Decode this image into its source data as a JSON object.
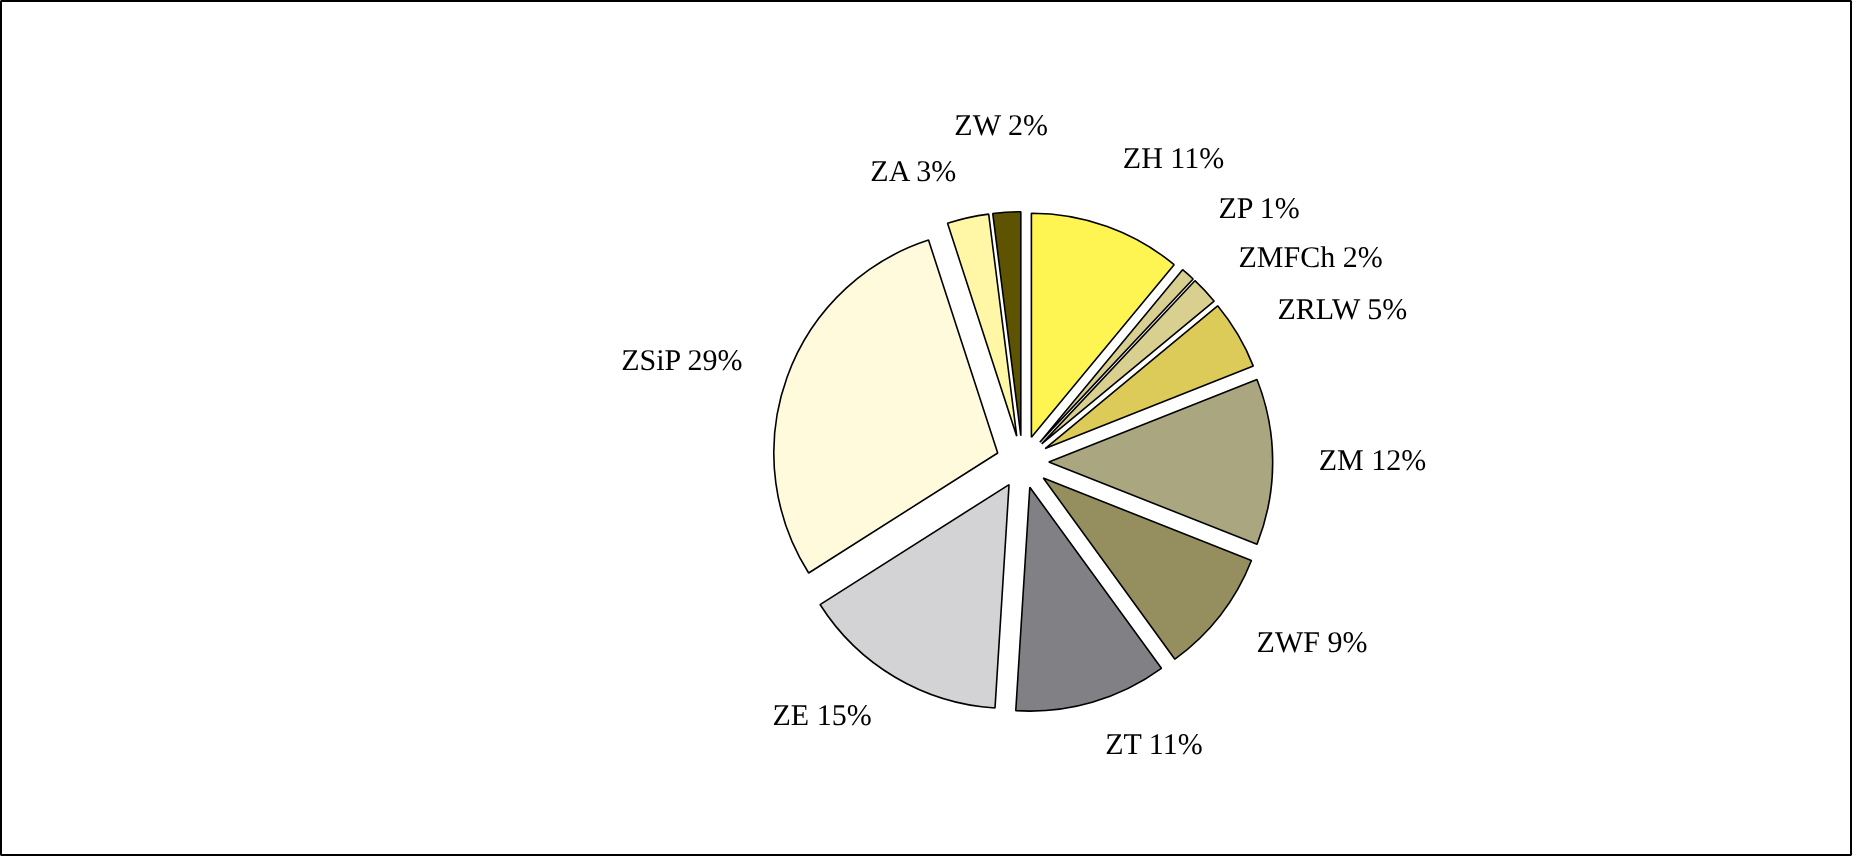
{
  "chart_data": {
    "type": "pie",
    "categories": [
      "ZH",
      "ZP",
      "ZMFCh",
      "ZRLW",
      "ZM",
      "ZWF",
      "ZT",
      "ZE",
      "ZSiP",
      "ZA",
      "ZW"
    ],
    "values": [
      11,
      1,
      2,
      5,
      12,
      9,
      11,
      15,
      29,
      3,
      2
    ],
    "value_labels": [
      "11%",
      "1%",
      "2%",
      "5%",
      "12%",
      "9%",
      "11%",
      "15%",
      "29%",
      "3%",
      "2%"
    ],
    "colors": [
      "#fff552",
      "#d8d090",
      "#d9d090",
      "#dccb58",
      "#aaa780",
      "#958f60",
      "#818185",
      "#d3d3d5",
      "#fffadc",
      "#fff7a6",
      "#5e5300"
    ]
  }
}
